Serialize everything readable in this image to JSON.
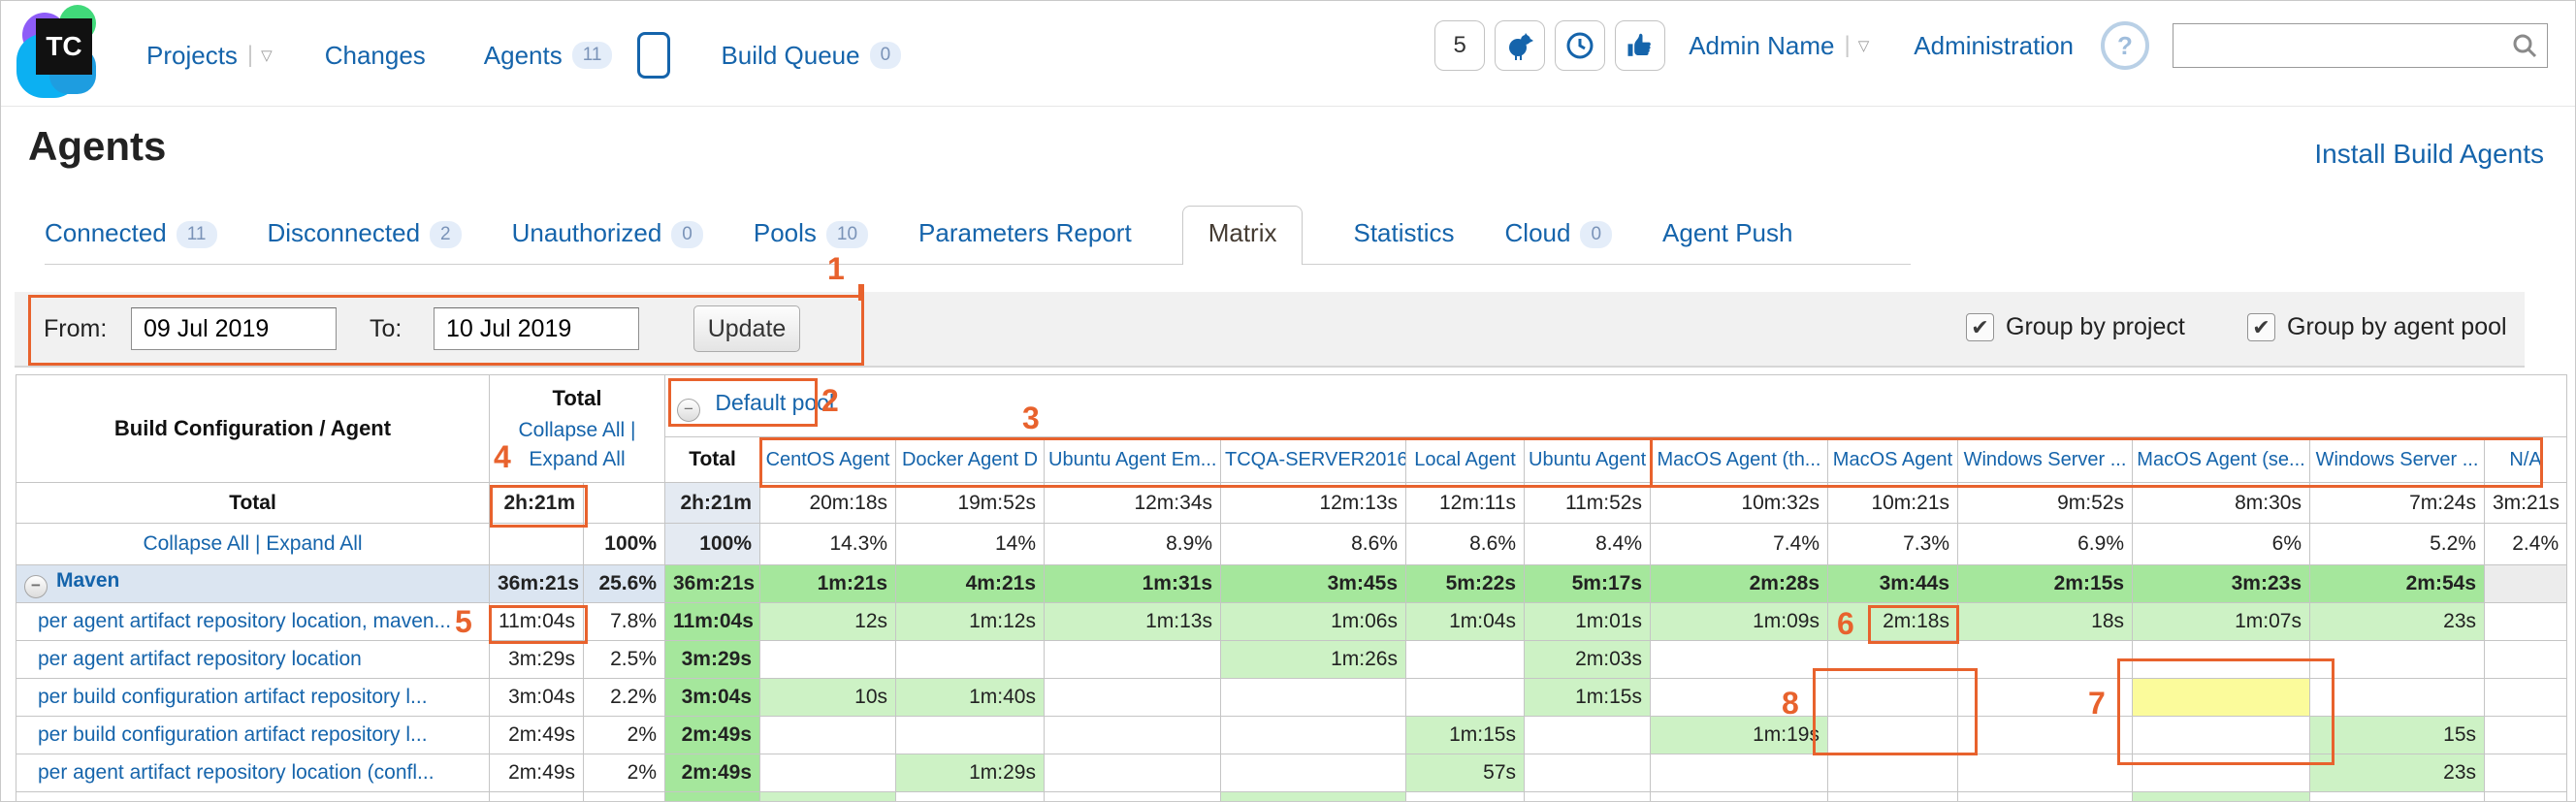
{
  "colors": {
    "accent_blue": "#1564ab",
    "annotation_orange": "#e8622d",
    "green_medium": "#a5e79c",
    "green_light": "#cdf2c5",
    "highlight_yellow": "#fbfb9b",
    "group_row": "#dbe5f1",
    "pool_total_bg": "#e4eaf2"
  },
  "topbar": {
    "nav": [
      {
        "label": "Projects"
      },
      {
        "label": "Changes"
      },
      {
        "label": "Agents",
        "badge": "11"
      },
      {
        "label": "Build Queue",
        "badge": "0"
      }
    ],
    "counter_badge": "5",
    "user_name": "Admin Name",
    "admin_link": "Administration"
  },
  "page": {
    "title": "Agents",
    "install_link": "Install Build Agents"
  },
  "tabs": [
    {
      "label": "Connected",
      "badge": "11"
    },
    {
      "label": "Disconnected",
      "badge": "2"
    },
    {
      "label": "Unauthorized",
      "badge": "0"
    },
    {
      "label": "Pools",
      "badge": "10"
    },
    {
      "label": "Parameters Report"
    },
    {
      "label": "Matrix"
    },
    {
      "label": "Statistics"
    },
    {
      "label": "Cloud",
      "badge": "0"
    },
    {
      "label": "Agent Push"
    }
  ],
  "filter": {
    "from_label": "From:",
    "from_value": "09 Jul 2019",
    "to_label": "To:",
    "to_value": "10 Jul 2019",
    "update_label": "Update",
    "group_project_label": "Group by project",
    "group_pool_label": "Group by agent pool",
    "group_project_checked": true,
    "group_pool_checked": true
  },
  "matrix": {
    "corner": "Build Configuration / Agent",
    "total_header": "Total",
    "collapse_link": "Collapse All |",
    "expand_link": "Expand All",
    "pool_name": "Default pool",
    "pool_total": "Total",
    "agents": [
      "CentOS Agent",
      "Docker Agent D",
      "Ubuntu Agent Em...",
      "TCQA-SERVER2016",
      "Local Agent",
      "Ubuntu Agent",
      "MacOS Agent (th...",
      "MacOS Agent",
      "Windows Server ...",
      "MacOS Agent (se...",
      "Windows Server ...",
      "N/A"
    ],
    "rows": [
      {
        "kind": "total",
        "label": "Total",
        "time": "2h:21m",
        "pct": "",
        "s2": "",
        "pool": {
          "t": "2h:21m",
          "s": "b"
        },
        "cells": [
          {
            "t": "20m:18s",
            "s": ""
          },
          {
            "t": "19m:52s",
            "s": ""
          },
          {
            "t": "12m:34s",
            "s": ""
          },
          {
            "t": "12m:13s",
            "s": ""
          },
          {
            "t": "12m:11s",
            "s": ""
          },
          {
            "t": "11m:52s",
            "s": ""
          },
          {
            "t": "10m:32s",
            "s": ""
          },
          {
            "t": "10m:21s",
            "s": ""
          },
          {
            "t": "9m:52s",
            "s": ""
          },
          {
            "t": "8m:30s",
            "s": ""
          },
          {
            "t": "7m:24s",
            "s": ""
          },
          {
            "t": "3m:21s",
            "s": ""
          }
        ]
      },
      {
        "kind": "pct",
        "label": "Collapse All | Expand All",
        "time": "",
        "pct": "100%",
        "s2": "",
        "pool": {
          "t": "100%",
          "s": "b"
        },
        "cells": [
          {
            "t": "14.3%",
            "s": ""
          },
          {
            "t": "14%",
            "s": ""
          },
          {
            "t": "8.9%",
            "s": ""
          },
          {
            "t": "8.6%",
            "s": ""
          },
          {
            "t": "8.6%",
            "s": ""
          },
          {
            "t": "8.4%",
            "s": ""
          },
          {
            "t": "7.4%",
            "s": ""
          },
          {
            "t": "7.3%",
            "s": ""
          },
          {
            "t": "6.9%",
            "s": ""
          },
          {
            "t": "6%",
            "s": ""
          },
          {
            "t": "5.2%",
            "s": ""
          },
          {
            "t": "2.4%",
            "s": ""
          }
        ]
      },
      {
        "kind": "group",
        "label": "Maven",
        "time": "36m:21s",
        "pct": "25.6%",
        "s2": "h",
        "pool": {
          "t": "36m:21s",
          "s": "G"
        },
        "cells": [
          {
            "t": "1m:21s",
            "s": "G"
          },
          {
            "t": "4m:21s",
            "s": "G"
          },
          {
            "t": "1m:31s",
            "s": "G"
          },
          {
            "t": "3m:45s",
            "s": "G"
          },
          {
            "t": "5m:22s",
            "s": "G"
          },
          {
            "t": "5m:17s",
            "s": "G"
          },
          {
            "t": "2m:28s",
            "s": "G"
          },
          {
            "t": "3m:44s",
            "s": "G"
          },
          {
            "t": "2m:15s",
            "s": "G"
          },
          {
            "t": "3m:23s",
            "s": "G"
          },
          {
            "t": "2m:54s",
            "s": "G"
          },
          {
            "t": "",
            "s": "x"
          }
        ]
      },
      {
        "kind": "data",
        "label": "per agent artifact repository location, maven...",
        "time": "11m:04s",
        "pct": "7.8%",
        "s2": "",
        "pool": {
          "t": "11m:04s",
          "s": "G"
        },
        "cells": [
          {
            "t": "12s",
            "s": "g"
          },
          {
            "t": "1m:12s",
            "s": "g"
          },
          {
            "t": "1m:13s",
            "s": "g"
          },
          {
            "t": "1m:06s",
            "s": "g"
          },
          {
            "t": "1m:04s",
            "s": "g"
          },
          {
            "t": "1m:01s",
            "s": "g"
          },
          {
            "t": "1m:09s",
            "s": "g"
          },
          {
            "t": "2m:18s",
            "s": "g"
          },
          {
            "t": "18s",
            "s": "g"
          },
          {
            "t": "1m:07s",
            "s": "g"
          },
          {
            "t": "23s",
            "s": "g"
          },
          {
            "t": "",
            "s": ""
          }
        ]
      },
      {
        "kind": "data",
        "label": "per agent artifact repository location",
        "time": "3m:29s",
        "pct": "2.5%",
        "s2": "",
        "pool": {
          "t": "3m:29s",
          "s": "G"
        },
        "cells": [
          {
            "t": "",
            "s": ""
          },
          {
            "t": "",
            "s": ""
          },
          {
            "t": "",
            "s": ""
          },
          {
            "t": "1m:26s",
            "s": "g"
          },
          {
            "t": "",
            "s": ""
          },
          {
            "t": "2m:03s",
            "s": "g"
          },
          {
            "t": "",
            "s": ""
          },
          {
            "t": "",
            "s": ""
          },
          {
            "t": "",
            "s": ""
          },
          {
            "t": "",
            "s": ""
          },
          {
            "t": "",
            "s": ""
          },
          {
            "t": "",
            "s": ""
          }
        ]
      },
      {
        "kind": "data",
        "label": "per build configuration artifact repository l...",
        "time": "3m:04s",
        "pct": "2.2%",
        "s2": "",
        "pool": {
          "t": "3m:04s",
          "s": "G"
        },
        "cells": [
          {
            "t": "10s",
            "s": "g"
          },
          {
            "t": "1m:40s",
            "s": "g"
          },
          {
            "t": "",
            "s": ""
          },
          {
            "t": "",
            "s": ""
          },
          {
            "t": "",
            "s": ""
          },
          {
            "t": "1m:15s",
            "s": "g"
          },
          {
            "t": "",
            "s": ""
          },
          {
            "t": "",
            "s": ""
          },
          {
            "t": "",
            "s": ""
          },
          {
            "t": "",
            "s": "y"
          },
          {
            "t": "",
            "s": ""
          },
          {
            "t": "",
            "s": ""
          }
        ]
      },
      {
        "kind": "data",
        "label": "per build configuration artifact repository l...",
        "time": "2m:49s",
        "pct": "2%",
        "s2": "",
        "pool": {
          "t": "2m:49s",
          "s": "G"
        },
        "cells": [
          {
            "t": "",
            "s": ""
          },
          {
            "t": "",
            "s": ""
          },
          {
            "t": "",
            "s": ""
          },
          {
            "t": "",
            "s": ""
          },
          {
            "t": "1m:15s",
            "s": "g"
          },
          {
            "t": "",
            "s": ""
          },
          {
            "t": "1m:19s",
            "s": "g"
          },
          {
            "t": "",
            "s": ""
          },
          {
            "t": "",
            "s": ""
          },
          {
            "t": "",
            "s": ""
          },
          {
            "t": "15s",
            "s": "g"
          },
          {
            "t": "",
            "s": ""
          }
        ]
      },
      {
        "kind": "data",
        "label": "per agent artifact repository location (confl...",
        "time": "2m:49s",
        "pct": "2%",
        "s2": "",
        "pool": {
          "t": "2m:49s",
          "s": "G"
        },
        "cells": [
          {
            "t": "",
            "s": ""
          },
          {
            "t": "1m:29s",
            "s": "g"
          },
          {
            "t": "",
            "s": ""
          },
          {
            "t": "",
            "s": ""
          },
          {
            "t": "57s",
            "s": "g"
          },
          {
            "t": "",
            "s": ""
          },
          {
            "t": "",
            "s": ""
          },
          {
            "t": "",
            "s": ""
          },
          {
            "t": "",
            "s": ""
          },
          {
            "t": "",
            "s": ""
          },
          {
            "t": "23s",
            "s": "g"
          },
          {
            "t": "",
            "s": ""
          }
        ]
      },
      {
        "kind": "clip",
        "label": "",
        "time": "",
        "pct": "",
        "s2": "",
        "pool": {
          "t": "",
          "s": "G"
        },
        "cells": [
          {
            "t": "",
            "s": "g"
          },
          {
            "t": "",
            "s": ""
          },
          {
            "t": "",
            "s": ""
          },
          {
            "t": "",
            "s": "g"
          },
          {
            "t": "",
            "s": ""
          },
          {
            "t": "",
            "s": ""
          },
          {
            "t": "",
            "s": ""
          },
          {
            "t": "",
            "s": ""
          },
          {
            "t": "",
            "s": ""
          },
          {
            "t": "",
            "s": "g"
          },
          {
            "t": "",
            "s": ""
          },
          {
            "t": "",
            "s": ""
          }
        ]
      }
    ]
  },
  "annotations": {
    "n1": "1",
    "n2": "2",
    "n3": "3",
    "n4": "4",
    "n5": "5",
    "n6": "6",
    "n7": "7",
    "n8": "8"
  }
}
